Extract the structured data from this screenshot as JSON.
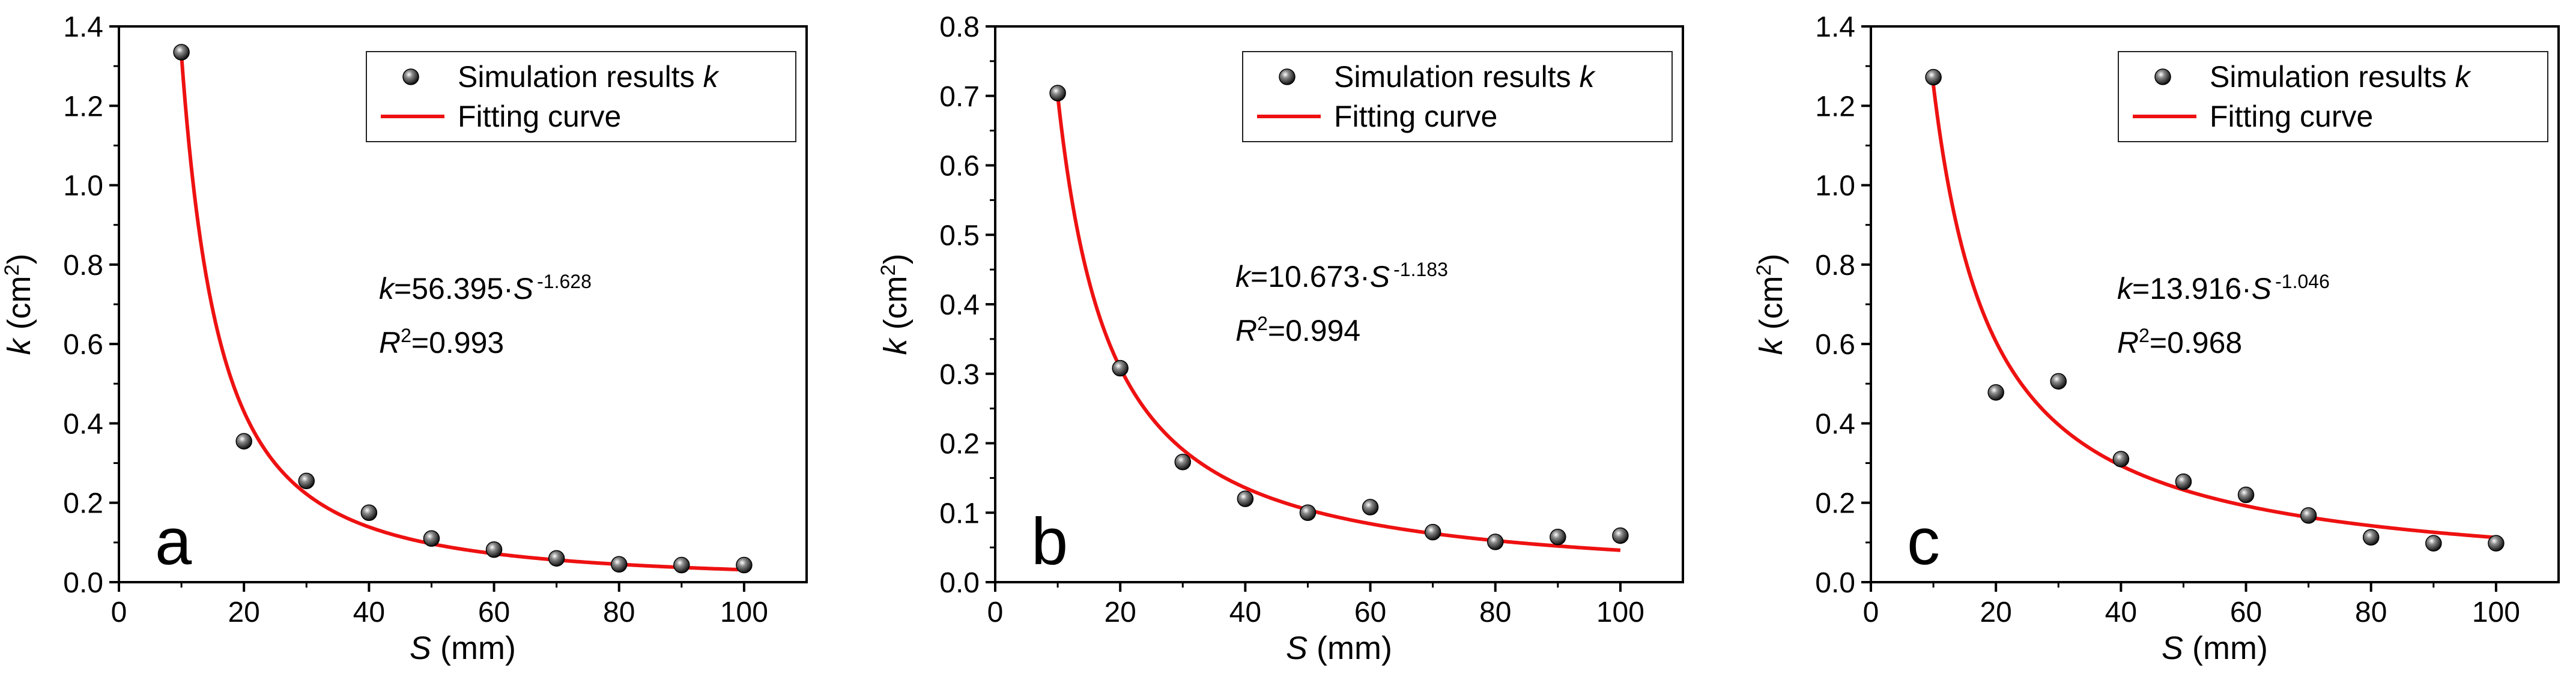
{
  "figure": {
    "marker_color": "#111111",
    "fit_color": "#ee1111"
  },
  "chart_data": [
    {
      "type": "scatter",
      "panel_letter": "a",
      "xlabel": {
        "var": "S",
        "unit": " (mm)"
      },
      "ylabel": {
        "var": "k",
        "unit_prefix": " (cm",
        "unit_sup": "2",
        "unit_suffix": ")"
      },
      "xlim": [
        0,
        110
      ],
      "ylim": [
        0,
        1.4
      ],
      "xticks": [
        0,
        20,
        40,
        60,
        80,
        100
      ],
      "yticks": [
        0.0,
        0.2,
        0.4,
        0.6,
        0.8,
        1.0,
        1.2,
        1.4
      ],
      "ytick_labels": [
        "0.0",
        "0.2",
        "0.4",
        "0.6",
        "0.8",
        "1.0",
        "1.2",
        "1.4"
      ],
      "xtick_labels": [
        "0",
        "20",
        "40",
        "60",
        "80",
        "100"
      ],
      "series": [
        {
          "name": "Simulation results",
          "name_var": "k",
          "kind": "points",
          "x": [
            10,
            20,
            30,
            40,
            50,
            60,
            70,
            80,
            90,
            100
          ],
          "y": [
            1.335,
            0.355,
            0.255,
            0.175,
            0.11,
            0.082,
            0.06,
            0.045,
            0.043,
            0.043
          ]
        },
        {
          "name": "Fitting curve",
          "kind": "power_fit",
          "a": 56.395,
          "b": -1.628,
          "x_range": [
            10,
            100
          ]
        }
      ],
      "equation": {
        "lhs": "k",
        "coef": "=56.395·",
        "var": "S",
        "exp": "-1.628"
      },
      "r2": {
        "lhs": "R",
        "sup": "2",
        "value": "=0.993"
      }
    },
    {
      "type": "scatter",
      "panel_letter": "b",
      "xlabel": {
        "var": "S",
        "unit": " (mm)"
      },
      "ylabel": {
        "var": "k",
        "unit_prefix": " (cm",
        "unit_sup": "2",
        "unit_suffix": ")"
      },
      "xlim": [
        0,
        110
      ],
      "ylim": [
        0,
        0.8
      ],
      "xticks": [
        0,
        20,
        40,
        60,
        80,
        100
      ],
      "yticks": [
        0.0,
        0.1,
        0.2,
        0.3,
        0.4,
        0.5,
        0.6,
        0.7,
        0.8
      ],
      "ytick_labels": [
        "0.0",
        "0.1",
        "0.2",
        "0.3",
        "0.4",
        "0.5",
        "0.6",
        "0.7",
        "0.8"
      ],
      "xtick_labels": [
        "0",
        "20",
        "40",
        "60",
        "80",
        "100"
      ],
      "series": [
        {
          "name": "Simulation results",
          "name_var": "k",
          "kind": "points",
          "x": [
            10,
            20,
            30,
            40,
            50,
            60,
            70,
            80,
            90,
            100
          ],
          "y": [
            0.704,
            0.308,
            0.173,
            0.12,
            0.1,
            0.108,
            0.072,
            0.058,
            0.065,
            0.067
          ]
        },
        {
          "name": "Fitting curve",
          "kind": "power_fit",
          "a": 10.673,
          "b": -1.183,
          "x_range": [
            10,
            100
          ]
        }
      ],
      "equation": {
        "lhs": "k",
        "coef": "=10.673·",
        "var": "S",
        "exp": "-1.183"
      },
      "r2": {
        "lhs": "R",
        "sup": "2",
        "value": "=0.994"
      }
    },
    {
      "type": "scatter",
      "panel_letter": "c",
      "xlabel": {
        "var": "S",
        "unit": " (mm)"
      },
      "ylabel": {
        "var": "k",
        "unit_prefix": " (cm",
        "unit_sup": "2",
        "unit_suffix": ")"
      },
      "xlim": [
        0,
        110
      ],
      "ylim": [
        0,
        1.4
      ],
      "xticks": [
        0,
        20,
        40,
        60,
        80,
        100
      ],
      "yticks": [
        0.0,
        0.2,
        0.4,
        0.6,
        0.8,
        1.0,
        1.2,
        1.4
      ],
      "ytick_labels": [
        "0.0",
        "0.2",
        "0.4",
        "0.6",
        "0.8",
        "1.0",
        "1.2",
        "1.4"
      ],
      "xtick_labels": [
        "0",
        "20",
        "40",
        "60",
        "80",
        "100"
      ],
      "series": [
        {
          "name": "Simulation results",
          "name_var": "k",
          "kind": "points",
          "x": [
            10,
            20,
            30,
            40,
            50,
            60,
            70,
            80,
            90,
            100
          ],
          "y": [
            1.272,
            0.478,
            0.506,
            0.31,
            0.253,
            0.22,
            0.168,
            0.113,
            0.098,
            0.098
          ]
        },
        {
          "name": "Fitting curve",
          "kind": "power_fit",
          "a": 13.916,
          "b": -1.046,
          "x_range": [
            10,
            100
          ]
        }
      ],
      "equation": {
        "lhs": "k",
        "coef": "=13.916·",
        "var": "S",
        "exp": "-1.046"
      },
      "r2": {
        "lhs": "R",
        "sup": "2",
        "value": "=0.968"
      }
    }
  ]
}
